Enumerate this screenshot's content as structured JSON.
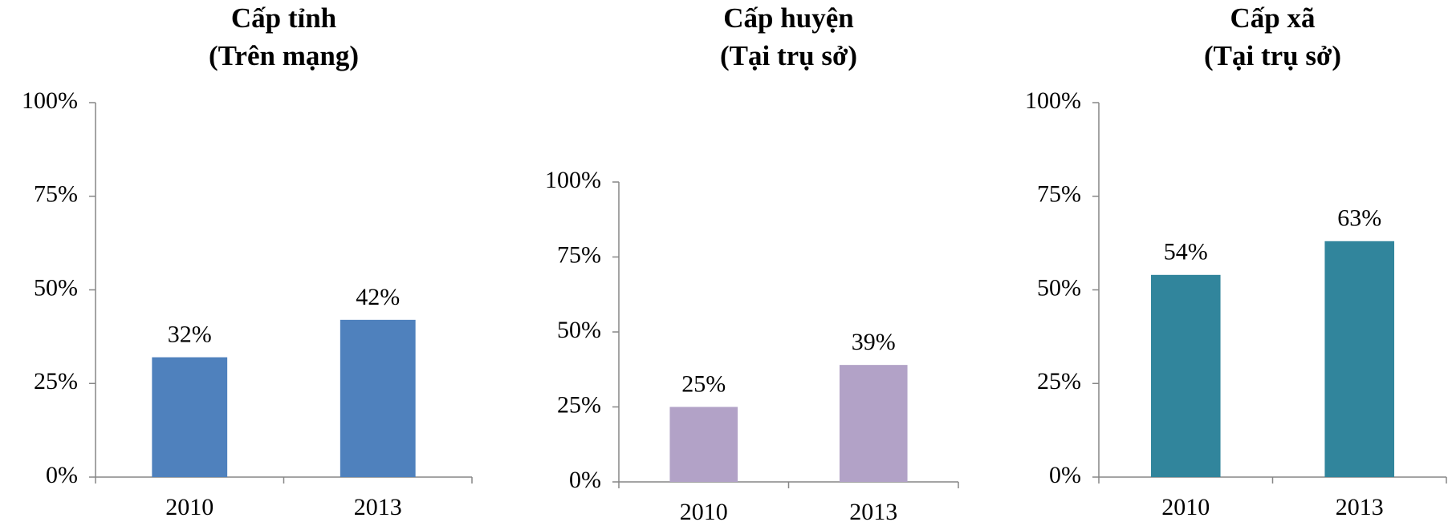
{
  "chart_data": [
    {
      "type": "bar",
      "title": "Cấp tỉnh",
      "subtitle": "(Trên mạng)",
      "categories": [
        "2010",
        "2013"
      ],
      "values": [
        32,
        42
      ],
      "value_labels": [
        "32%",
        "42%"
      ],
      "color": "#4f81bd",
      "ylim": [
        0,
        100
      ],
      "yticks": [
        {
          "value": 0,
          "label": "0%"
        },
        {
          "value": 25,
          "label": "25%"
        },
        {
          "value": 50,
          "label": "50%"
        },
        {
          "value": 75,
          "label": "75%"
        },
        {
          "value": 100,
          "label": "100%"
        }
      ]
    },
    {
      "type": "bar",
      "title": "Cấp huyện",
      "subtitle": "(Tại trụ sở)",
      "categories": [
        "2010",
        "2013"
      ],
      "values": [
        25,
        39
      ],
      "value_labels": [
        "25%",
        "39%"
      ],
      "color": "#b2a2c7",
      "ylim": [
        0,
        100
      ],
      "yticks": [
        {
          "value": 0,
          "label": "0%"
        },
        {
          "value": 25,
          "label": "25%"
        },
        {
          "value": 50,
          "label": "50%"
        },
        {
          "value": 75,
          "label": "75%"
        },
        {
          "value": 100,
          "label": "100%"
        }
      ]
    },
    {
      "type": "bar",
      "title": "Cấp xã",
      "subtitle": "(Tại trụ sở)",
      "categories": [
        "2010",
        "2013"
      ],
      "values": [
        54,
        63
      ],
      "value_labels": [
        "54%",
        "63%"
      ],
      "color": "#31859c",
      "ylim": [
        0,
        100
      ],
      "yticks": [
        {
          "value": 0,
          "label": "0%"
        },
        {
          "value": 25,
          "label": "25%"
        },
        {
          "value": 50,
          "label": "50%"
        },
        {
          "value": 75,
          "label": "75%"
        },
        {
          "value": 100,
          "label": "100%"
        }
      ]
    }
  ]
}
